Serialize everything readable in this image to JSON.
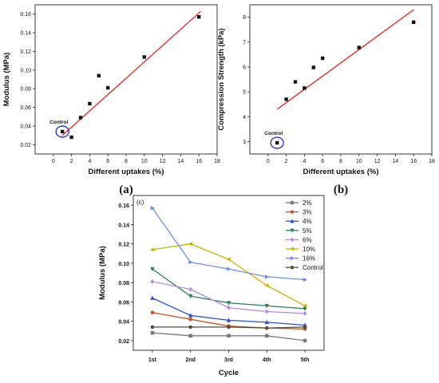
{
  "chart_data": [
    {
      "id": "a",
      "type": "scatter",
      "panel_label": "(a)",
      "xlabel": "Different uptakes (%)",
      "ylabel": "Modulus (MPa)",
      "xlim": [
        -2,
        18
      ],
      "ylim": [
        0.01,
        0.17
      ],
      "xticks": [
        0,
        2,
        4,
        6,
        8,
        10,
        12,
        14,
        16,
        18
      ],
      "yticks": [
        0.02,
        0.04,
        0.06,
        0.08,
        0.1,
        0.12,
        0.14,
        0.16
      ],
      "ytick_labels": [
        "0.02",
        "0.04",
        "0.06",
        "0.08",
        "0.10",
        "0.12",
        "0.14",
        "0.16"
      ],
      "points": [
        {
          "x": 1,
          "y": 0.034
        },
        {
          "x": 2,
          "y": 0.028
        },
        {
          "x": 3,
          "y": 0.049
        },
        {
          "x": 4,
          "y": 0.064
        },
        {
          "x": 5,
          "y": 0.094
        },
        {
          "x": 6,
          "y": 0.081
        },
        {
          "x": 10,
          "y": 0.114
        },
        {
          "x": 16,
          "y": 0.157
        }
      ],
      "fit_line": {
        "x": [
          1,
          16.2
        ],
        "y": [
          0.03,
          0.163
        ],
        "color": "#e8211e"
      },
      "annotation": {
        "text": "Control",
        "x": 1,
        "y": 0.034
      },
      "grid": false
    },
    {
      "id": "b",
      "type": "scatter",
      "panel_label": "(b)",
      "xlabel": "Different uptakes (%)",
      "ylabel": "Compression Strength (kPa)",
      "xlim": [
        -2,
        18
      ],
      "ylim": [
        2.5,
        8.5
      ],
      "xticks": [
        0,
        2,
        4,
        6,
        8,
        10,
        12,
        14,
        16,
        18
      ],
      "yticks": [
        3,
        4,
        5,
        6,
        7,
        8
      ],
      "ytick_labels": [
        "3",
        "4",
        "5",
        "6",
        "7",
        "8"
      ],
      "points": [
        {
          "x": 1,
          "y": 2.95
        },
        {
          "x": 2,
          "y": 4.7
        },
        {
          "x": 3,
          "y": 5.4
        },
        {
          "x": 4,
          "y": 5.15
        },
        {
          "x": 5,
          "y": 5.98
        },
        {
          "x": 6,
          "y": 6.35
        },
        {
          "x": 10,
          "y": 6.78
        },
        {
          "x": 16,
          "y": 7.8
        }
      ],
      "fit_line": {
        "x": [
          1,
          16
        ],
        "y": [
          4.3,
          8.3
        ],
        "color": "#e8211e"
      },
      "annotation": {
        "text": "Control",
        "x": 1,
        "y": 2.95
      },
      "grid": false
    },
    {
      "id": "c",
      "type": "line",
      "panel_label": "(c)",
      "corner_label": "(c)",
      "xlabel": "Cycle",
      "ylabel": "Modulus (MPa)",
      "categories": [
        "1st",
        "2nd",
        "3rd",
        "4th",
        "5th"
      ],
      "ylim": [
        0.01,
        0.17
      ],
      "yticks": [
        0.02,
        0.04,
        0.06,
        0.08,
        0.1,
        0.12,
        0.14,
        0.16
      ],
      "ytick_labels": [
        "0.02",
        "0.04",
        "0.06",
        "0.08",
        "0.10",
        "0.12",
        "0.14",
        "0.16"
      ],
      "legend_position": "top-right",
      "grid": false,
      "series": [
        {
          "name": "2%",
          "color": "#7a7a7a",
          "marker": "square",
          "values": [
            0.028,
            0.025,
            0.025,
            0.025,
            0.02
          ]
        },
        {
          "name": "3%",
          "color": "#c0562a",
          "marker": "circle",
          "values": [
            0.049,
            0.042,
            0.035,
            0.033,
            0.032
          ]
        },
        {
          "name": "4%",
          "color": "#2d4fc8",
          "marker": "triangle-up",
          "values": [
            0.064,
            0.046,
            0.041,
            0.039,
            0.036
          ]
        },
        {
          "name": "5%",
          "color": "#2e7d5a",
          "marker": "triangle-down",
          "values": [
            0.094,
            0.066,
            0.059,
            0.056,
            0.053
          ]
        },
        {
          "name": "6%",
          "color": "#b48ce0",
          "marker": "diamond",
          "values": [
            0.081,
            0.073,
            0.054,
            0.05,
            0.048
          ]
        },
        {
          "name": "10%",
          "color": "#c4b400",
          "marker": "triangle-left",
          "values": [
            0.114,
            0.12,
            0.104,
            0.077,
            0.056
          ]
        },
        {
          "name": "16%",
          "color": "#6b8fe0",
          "marker": "triangle-right",
          "values": [
            0.157,
            0.101,
            0.094,
            0.086,
            0.083
          ]
        },
        {
          "name": "Control",
          "color": "#5a4a3a",
          "marker": "circle",
          "values": [
            0.034,
            0.034,
            0.034,
            0.033,
            0.034
          ]
        }
      ]
    }
  ]
}
